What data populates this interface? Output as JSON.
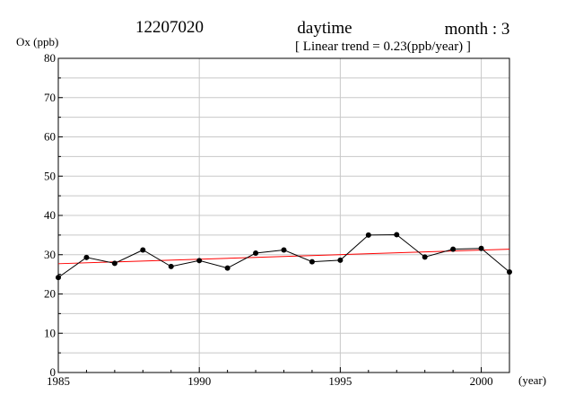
{
  "header": {
    "station": "12207020",
    "period": "daytime",
    "month_label": "month : 3",
    "trend_label": "[ Linear trend = 0.23(ppb/year) ]"
  },
  "chart_data": {
    "type": "line",
    "ylabel": "Ox (ppb)",
    "xlabel": "(year)",
    "xlim": [
      1985,
      2001
    ],
    "ylim": [
      0,
      80
    ],
    "x_ticks": [
      1985,
      1990,
      1995,
      2000
    ],
    "y_ticks": [
      0,
      10,
      20,
      30,
      40,
      50,
      60,
      70,
      80
    ],
    "x_tick_labels": [
      "1985",
      "1990",
      "1995",
      "2000"
    ],
    "y_tick_labels": [
      "0",
      "10",
      "20",
      "30",
      "40",
      "50",
      "60",
      "70",
      "80"
    ],
    "grid": true,
    "series": [
      {
        "x": [
          1985,
          1986,
          1987,
          1988,
          1989,
          1990,
          1991,
          1992,
          1993,
          1994,
          1995,
          1996,
          1997,
          1998,
          1999,
          2000,
          2001
        ],
        "values": [
          24.2,
          29.3,
          27.8,
          31.2,
          27.0,
          28.5,
          26.6,
          30.4,
          31.2,
          28.2,
          28.6,
          35.0,
          35.1,
          29.4,
          31.4,
          31.6,
          25.6
        ],
        "color": "#000000"
      }
    ],
    "trend": {
      "slope": 0.23,
      "x": [
        1985,
        2001
      ],
      "values": [
        27.7,
        31.4
      ],
      "color": "#ff0000"
    }
  }
}
